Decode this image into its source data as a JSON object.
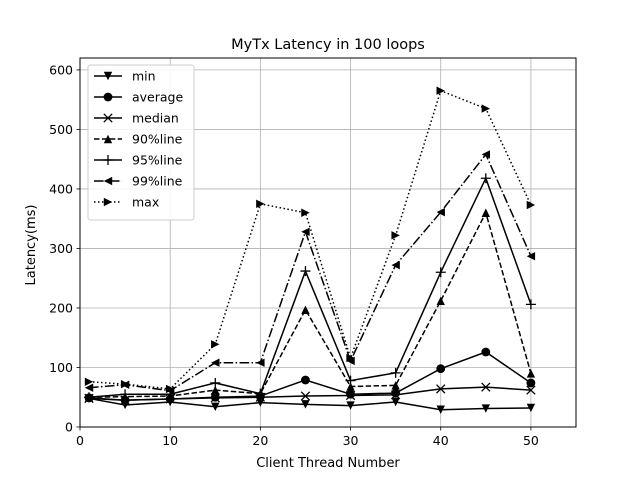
{
  "chart_data": {
    "type": "line",
    "title": "MyTx Latency in 100 loops",
    "xlabel": "Client Thread Number",
    "ylabel": "Latency(ms)",
    "xlim": [
      0,
      55
    ],
    "ylim": [
      0,
      620
    ],
    "xticks": [
      0,
      10,
      20,
      30,
      40,
      50
    ],
    "yticks": [
      0,
      100,
      200,
      300,
      400,
      500,
      600
    ],
    "grid": true,
    "legend_position": "top-left",
    "x": [
      1,
      5,
      10,
      15,
      20,
      25,
      30,
      35,
      40,
      45,
      50
    ],
    "series": [
      {
        "name": "min",
        "marker": "triangle-down",
        "linestyle": "solid",
        "values": [
          48,
          37,
          42,
          34,
          41,
          38,
          36,
          42,
          29,
          31,
          32
        ]
      },
      {
        "name": "average",
        "marker": "circle",
        "linestyle": "solid",
        "values": [
          49,
          45,
          47,
          50,
          52,
          79,
          55,
          57,
          98,
          126,
          74
        ]
      },
      {
        "name": "median",
        "marker": "x",
        "linestyle": "solid",
        "values": [
          48,
          45,
          47,
          49,
          50,
          52,
          53,
          54,
          64,
          67,
          62
        ]
      },
      {
        "name": "90%line",
        "marker": "triangle-up",
        "linestyle": "dashed",
        "values": [
          50,
          51,
          52,
          62,
          56,
          197,
          68,
          70,
          212,
          360,
          90
        ]
      },
      {
        "name": "95%line",
        "marker": "plus",
        "linestyle": "solid",
        "values": [
          50,
          55,
          55,
          74,
          56,
          262,
          78,
          91,
          260,
          418,
          206
        ]
      },
      {
        "name": "99%line",
        "marker": "triangle-left",
        "linestyle": "dashdot",
        "values": [
          66,
          71,
          61,
          108,
          108,
          328,
          111,
          272,
          361,
          458,
          287
        ]
      },
      {
        "name": "max",
        "marker": "triangle-right",
        "linestyle": "dotted",
        "values": [
          76,
          72,
          64,
          139,
          375,
          360,
          116,
          322,
          565,
          535,
          373
        ]
      }
    ]
  }
}
